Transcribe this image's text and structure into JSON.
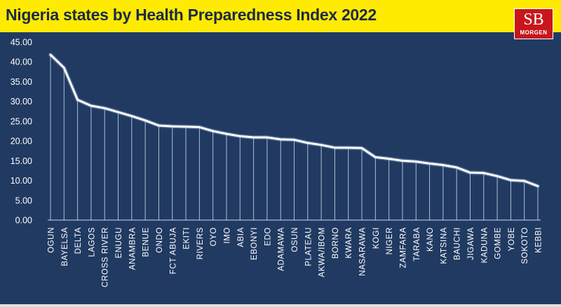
{
  "header": {
    "title": "Nigeria states by Health Preparedness Index 2022",
    "logo_mark": "SB",
    "logo_name": "MORGEN"
  },
  "colors": {
    "title_bar": "#ffeb00",
    "plot_background": "#203a62",
    "line": "#ffffff",
    "text": "#ffffff",
    "logo": "#c8161d"
  },
  "chart_data": {
    "type": "line",
    "title": "Nigeria states by Health Preparedness Index 2022",
    "xlabel": "",
    "ylabel": "",
    "ylim": [
      0,
      45
    ],
    "yticks": [
      "0.00",
      "5.00",
      "10.00",
      "15.00",
      "20.00",
      "25.00",
      "30.00",
      "35.00",
      "40.00",
      "45.00"
    ],
    "grid": false,
    "drop_lines": true,
    "categories": [
      "OGUN",
      "BAYELSA",
      "DELTA",
      "LAGOS",
      "CROSS RIVER",
      "ENUGU",
      "ANAMBRA",
      "BENUE",
      "ONDO",
      "FCT ABUJA",
      "EKITI",
      "RIVERS",
      "OYO",
      "IMO",
      "ABIA",
      "EBONYI",
      "EDO",
      "ADAMAWA",
      "OSUN",
      "PLATEAU",
      "AKWA/IBOM",
      "BORNO",
      "KWARA",
      "NASARAWA",
      "KOGI",
      "NIGER",
      "ZAMFARA",
      "TARABA",
      "KANO",
      "KATSINA",
      "BAUCHI",
      "JIGAWA",
      "KADUNA",
      "GOMBE",
      "YOBE",
      "SOKOTO",
      "KEBBI"
    ],
    "values": [
      41.8,
      38.5,
      30.4,
      28.9,
      28.3,
      27.3,
      26.3,
      25.2,
      23.9,
      23.7,
      23.6,
      23.5,
      22.5,
      21.8,
      21.2,
      20.9,
      20.9,
      20.4,
      20.3,
      19.5,
      19.0,
      18.3,
      18.3,
      18.2,
      15.9,
      15.5,
      15.0,
      14.8,
      14.3,
      13.9,
      13.3,
      12.0,
      11.9,
      11.1,
      10.1,
      9.9,
      8.6
    ]
  }
}
